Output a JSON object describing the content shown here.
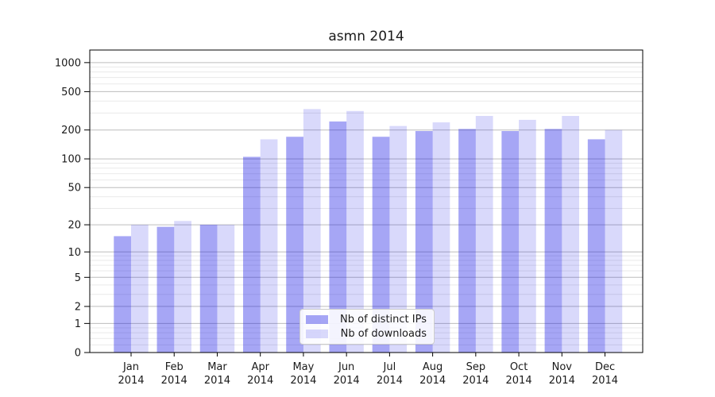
{
  "window": {
    "title": "asmn 2014"
  },
  "chart_data": {
    "type": "bar",
    "title": "asmn 2014",
    "xlabel": "",
    "ylabel": "",
    "yscale": "log1p",
    "ylim": [
      0,
      1350
    ],
    "grid": true,
    "legend_position": "lower-center",
    "categories": [
      "Jan",
      "Feb",
      "Mar",
      "Apr",
      "May",
      "Jun",
      "Jul",
      "Aug",
      "Sep",
      "Oct",
      "Nov",
      "Dec"
    ],
    "year_label": "2014",
    "ytick_labels": [
      "0",
      "1",
      "2",
      "5",
      "10",
      "20",
      "50",
      "100",
      "200",
      "500",
      "1000"
    ],
    "ytick_values": [
      0,
      1,
      2,
      5,
      10,
      20,
      50,
      100,
      200,
      500,
      1000
    ],
    "series": [
      {
        "name": "Nb of distinct IPs",
        "color": "rgba(20,20,230,0.38)",
        "values": [
          15,
          19,
          20,
          105,
          170,
          245,
          170,
          195,
          205,
          195,
          205,
          160
        ]
      },
      {
        "name": "Nb of downloads",
        "color": "rgba(20,20,230,0.16)",
        "values": [
          20,
          22,
          20,
          160,
          330,
          315,
          220,
          240,
          280,
          255,
          280,
          200
        ]
      }
    ],
    "colors": {
      "major_grid": "#bdbdbd",
      "minor_grid": "#e9e9e9",
      "axis": "#000000",
      "text": "#1a1a1a"
    }
  }
}
